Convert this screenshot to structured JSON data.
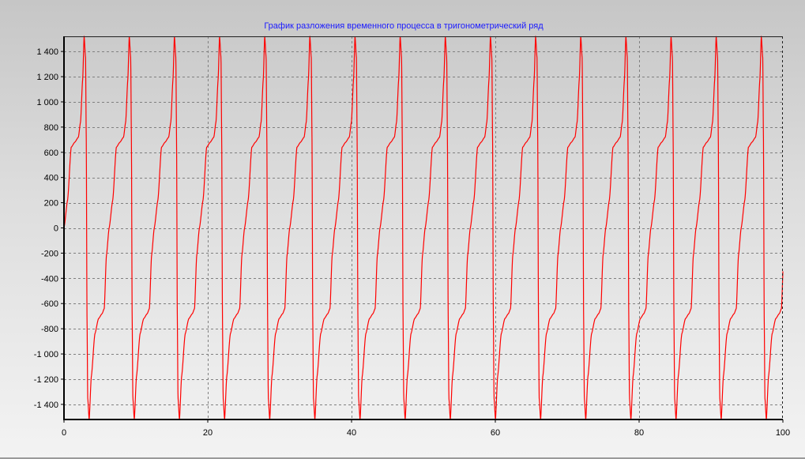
{
  "chart_data": {
    "type": "line",
    "title": "График разложения временного процесса в тригонометрический ряд",
    "xlabel": "",
    "ylabel": "",
    "xlim": [
      0,
      100
    ],
    "ylim": [
      -1520,
      1520
    ],
    "x_ticks": [
      0,
      20,
      40,
      60,
      80,
      100
    ],
    "x_tick_labels": [
      "0",
      "20",
      "40",
      "60",
      "80",
      "100"
    ],
    "y_ticks": [
      1400,
      1200,
      1000,
      800,
      600,
      400,
      200,
      0,
      -200,
      -400,
      -600,
      -800,
      -1000,
      -1200,
      -1400
    ],
    "y_tick_labels": [
      "1 400",
      "1 200",
      "1 000",
      "800",
      "600",
      "400",
      "200",
      "0",
      "-200",
      "-400",
      "-600",
      "-800",
      "-1 000",
      "-1 200",
      "-1 400"
    ],
    "grid": true,
    "legend": false,
    "series": [
      {
        "period": 6.28,
        "amplitude": 1520,
        "plateau_level": 690,
        "x": [
          0,
          0.5,
          1.0,
          1.5,
          2.0,
          2.3,
          2.6,
          2.8,
          3.0,
          3.1,
          3.2,
          3.3,
          3.5,
          3.8,
          4.3,
          4.8,
          5.3,
          5.6,
          5.9,
          6.28
        ],
        "y": [
          0,
          220,
          640,
          680,
          720,
          840,
          1180,
          1520,
          1350,
          700,
          -700,
          -1350,
          -1520,
          -1180,
          -840,
          -720,
          -680,
          -640,
          -220,
          0
        ]
      }
    ]
  },
  "colors": {
    "line": "#ff0000",
    "title": "#1a1aff",
    "grid": "#808080",
    "axis": "#000000"
  }
}
